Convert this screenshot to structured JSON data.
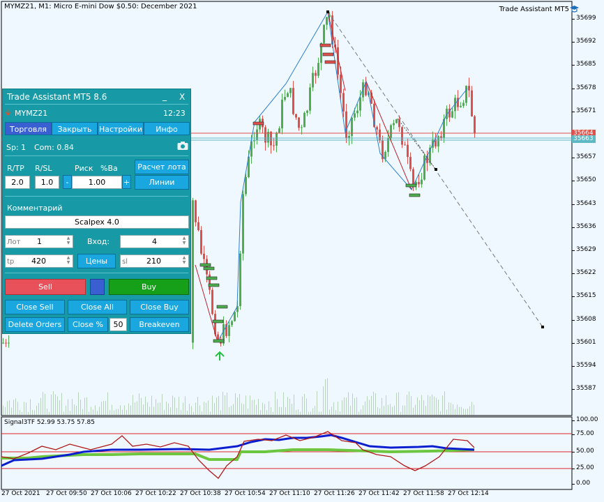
{
  "chart": {
    "title": "MYMZ21, M1:  Micro E-mini Dow $0.50: December 2021",
    "expert_label": "Trade Assistant MT5",
    "expert_icon": "graduation-cap-icon",
    "price_ticks": [
      "35699",
      "35692",
      "35685",
      "35678",
      "35671",
      "35664",
      "35657",
      "35650",
      "35643",
      "35636",
      "35629",
      "35622",
      "35615",
      "35608",
      "35601",
      "35594",
      "35587"
    ],
    "bid_label": "35664",
    "ask_label": "35663",
    "bid_color": "#e0504a",
    "ask_color": "#5fb9c4",
    "time_ticks": [
      "27 Oct 2021",
      "27 Oct 09:50",
      "27 Oct 10:06",
      "27 Oct 10:22",
      "27 Oct 10:38",
      "27 Oct 10:54",
      "27 Oct 11:10",
      "27 Oct 11:26",
      "27 Oct 11:42",
      "27 Oct 11:58",
      "27 Oct 12:14"
    ]
  },
  "indicator": {
    "title": "Signal3TF 52.99 53.75 57.85",
    "scale_ticks": [
      "100.00",
      "75.00",
      "50.00",
      "25.00",
      "0.00"
    ]
  },
  "panel": {
    "title": "Trade Assistant MT5 8.6",
    "minimize": "_",
    "close": "X",
    "symbol": "MYMZ21",
    "time": "12:23",
    "tabs": [
      "Торговля",
      "Закрыть",
      "Настройки",
      "Инфо"
    ],
    "spread": "Sp: 1",
    "commission": "Com: 0.84",
    "rtp_label": "R/TP",
    "rsl_label": "R/SL",
    "risk_label": "Риск",
    "risk_unit": "%Ba",
    "lot_calc_button": "Расчет лота",
    "rtp_value": "2.0",
    "rsl_value": "1.0",
    "risk_minus": "-",
    "risk_value": "1.00",
    "risk_plus": "+",
    "lines_button": "Линии",
    "comment_label": "Комментарий",
    "comment_value": "Scalpex 4.0",
    "lot_label": "Лот",
    "lot_value": "1",
    "entry_label": "Вход:",
    "entry_value": "4",
    "tp_label": "tp",
    "tp_value": "420",
    "prices_button": "Цены",
    "sl_label": "sl",
    "sl_value": "210",
    "sell_button": "Sell",
    "buy_button": "Buy",
    "close_sell": "Close Sell",
    "close_all": "Close All",
    "close_buy": "Close Buy",
    "delete_orders": "Delete Orders",
    "close_percent": "Close %",
    "close_percent_value": "50",
    "breakeven": "Breakeven",
    "sell_color": "#e8505a",
    "buy_color": "#16a01a",
    "panel_color": "#189aa6",
    "tab_active_color": "#3a5fd1",
    "camera_icon": "camera-icon"
  }
}
